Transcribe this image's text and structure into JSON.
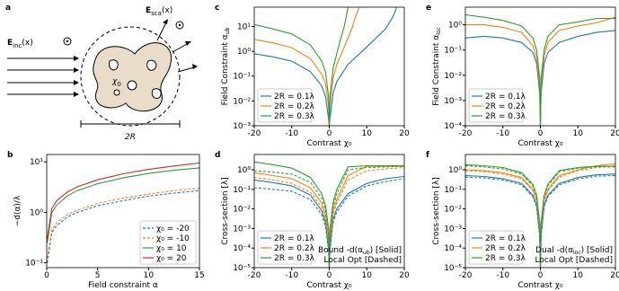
{
  "diagram": {
    "panel": "a",
    "incident": [
      "E",
      "inc",
      "(x)"
    ],
    "scattered": [
      "E",
      "sca",
      "(x)"
    ],
    "material": [
      "χ",
      "0"
    ],
    "diameter": "2R"
  },
  "chart_data": [
    {
      "type": "line",
      "panel": "b",
      "ylabel": "−d(α)/λ",
      "xlabel": "Field constraint α",
      "yscale": "log",
      "legend": "lower right",
      "x": [
        0.05,
        0.5,
        1,
        2,
        3,
        5,
        7.5,
        10,
        12.5,
        15
      ],
      "xlim": [
        0,
        15
      ],
      "xticks": [
        0,
        5,
        10,
        15
      ],
      "ylim": [
        0.08,
        14
      ],
      "yticks": [
        {
          "value": 0.1,
          "label": "10⁻¹"
        },
        {
          "value": 1,
          "label": "10⁰"
        },
        {
          "value": 10,
          "label": "10¹"
        }
      ],
      "series": [
        {
          "name": "χ₀ = -20",
          "color": "#1f77b4",
          "style": "dashed",
          "values": [
            0.1,
            0.4,
            0.55,
            0.8,
            1.0,
            1.35,
            1.7,
            2.1,
            2.4,
            2.7
          ]
        },
        {
          "name": "χ₀ = -10",
          "color": "#ff7f0e",
          "style": "dashed",
          "values": [
            0.12,
            0.45,
            0.62,
            0.9,
            1.1,
            1.5,
            1.9,
            2.3,
            2.7,
            3.0
          ]
        },
        {
          "name": "χ₀ = 10",
          "color": "#2ca02c",
          "style": "solid",
          "values": [
            0.25,
            1.0,
            1.4,
            2.1,
            2.7,
            3.7,
            4.8,
            5.9,
            6.8,
            7.6
          ]
        },
        {
          "name": "χ₀ = 20",
          "color": "#d62728",
          "style": "solid",
          "values": [
            0.3,
            1.2,
            1.7,
            2.5,
            3.2,
            4.4,
            5.8,
            7.1,
            8.3,
            9.5
          ]
        }
      ]
    },
    {
      "type": "line",
      "panel": "c",
      "ylabel": [
        "Field Constraint α",
        "ub"
      ],
      "xlabel": "Contrast χ₀",
      "yscale": "log",
      "legend": "lower left",
      "xlim": [
        -20,
        20
      ],
      "xticks": [
        -20,
        -10,
        0,
        10,
        20
      ],
      "ylim": [
        0.001,
        60
      ],
      "yticks": [
        {
          "value": 0.001,
          "label": "10⁻³"
        },
        {
          "value": 0.01,
          "label": "10⁻²"
        },
        {
          "value": 0.1,
          "label": "10⁻¹"
        },
        {
          "value": 1,
          "label": "10⁰"
        },
        {
          "value": 10,
          "label": "10¹"
        }
      ],
      "series": [
        {
          "name": "2R = 0.1λ",
          "color": "#1f77b4",
          "style": "solid",
          "x": [
            -20,
            -15,
            -10,
            -5,
            -2,
            -1,
            -0.2,
            0,
            0.2,
            1,
            2,
            5,
            10,
            15,
            17,
            18
          ],
          "values": [
            0.8,
            0.6,
            0.4,
            0.15,
            0.04,
            0.015,
            0.002,
            0.001,
            0.002,
            0.02,
            0.06,
            0.3,
            1.5,
            8,
            25,
            60
          ]
        },
        {
          "name": "2R = 0.2λ",
          "color": "#ff7f0e",
          "style": "solid",
          "x": [
            -20,
            -15,
            -10,
            -5,
            -2,
            -1,
            -0.2,
            0,
            0.2,
            1,
            2,
            4,
            6,
            7,
            8
          ],
          "values": [
            3,
            2.2,
            1.4,
            0.5,
            0.12,
            0.05,
            0.006,
            0.001,
            0.006,
            0.08,
            0.3,
            1.5,
            8,
            25,
            60
          ]
        },
        {
          "name": "2R = 0.3λ",
          "color": "#2ca02c",
          "style": "solid",
          "x": [
            -20,
            -15,
            -10,
            -5,
            -2,
            -1,
            -0.2,
            0,
            0.2,
            1,
            2,
            3,
            4,
            5
          ],
          "values": [
            12,
            8,
            5,
            1.8,
            0.4,
            0.15,
            0.015,
            0.001,
            0.015,
            0.2,
            0.8,
            3,
            10,
            60
          ]
        }
      ]
    },
    {
      "type": "line",
      "panel": "d",
      "ylabel": "Cross-section [λ]",
      "xlabel": "Contrast χ₀",
      "yscale": "log",
      "legend": "lower left",
      "annotations": [
        [
          "Bound -d(α",
          "ub",
          ") [Solid]"
        ],
        [
          "Local Opt [Dashed]"
        ]
      ],
      "x": [
        -20,
        -15,
        -10,
        -5,
        -2,
        -1,
        -0.2,
        0,
        0.2,
        1,
        2,
        5,
        10,
        15,
        20
      ],
      "xlim": [
        -20,
        20
      ],
      "xticks": [
        -20,
        -10,
        0,
        10,
        20
      ],
      "ylim": [
        1e-05,
        6
      ],
      "yticks": [
        {
          "value": 1e-05,
          "label": "10⁻⁵"
        },
        {
          "value": 0.0001,
          "label": "10⁻⁴"
        },
        {
          "value": 0.001,
          "label": "10⁻³"
        },
        {
          "value": 0.01,
          "label": "10⁻²"
        },
        {
          "value": 0.1,
          "label": "10⁻¹"
        },
        {
          "value": 1,
          "label": "10⁰"
        }
      ],
      "series": [
        {
          "name": "2R = 0.1λ",
          "color": "#1f77b4",
          "style": "solid",
          "values": [
            0.3,
            0.22,
            0.15,
            0.05,
            0.008,
            0.002,
            0.0001,
            1e-05,
            0.0001,
            0.003,
            0.01,
            0.06,
            0.2,
            0.35,
            0.45
          ]
        },
        {
          "name": "2R = 0.2λ",
          "color": "#ff7f0e",
          "style": "solid",
          "values": [
            0.7,
            0.5,
            0.35,
            0.12,
            0.02,
            0.005,
            0.0003,
            1e-05,
            0.0003,
            0.008,
            0.03,
            0.5,
            1.5,
            1.5,
            1.5
          ]
        },
        {
          "name": "2R = 0.3λ",
          "color": "#2ca02c",
          "style": "solid",
          "values": [
            2.5,
            1.8,
            1.2,
            0.4,
            0.06,
            0.015,
            0.001,
            1e-05,
            0.001,
            0.02,
            0.1,
            1.4,
            1.6,
            1.6,
            1.6
          ]
        },
        {
          "color": "#1f77b4",
          "style": "dashed",
          "values": [
            0.12,
            0.1,
            0.08,
            0.03,
            0.005,
            0.0013,
            8e-05,
            1e-05,
            8e-05,
            0.002,
            0.007,
            0.045,
            0.15,
            0.25,
            0.35
          ]
        },
        {
          "color": "#ff7f0e",
          "style": "dashed",
          "values": [
            0.4,
            0.3,
            0.2,
            0.07,
            0.012,
            0.003,
            0.0002,
            1e-05,
            0.0002,
            0.005,
            0.02,
            0.3,
            0.9,
            1.1,
            1.3
          ]
        },
        {
          "color": "#2ca02c",
          "style": "dashed",
          "values": [
            0.9,
            0.75,
            0.6,
            0.22,
            0.035,
            0.009,
            0.0006,
            1e-05,
            0.0006,
            0.012,
            0.06,
            1.0,
            1.3,
            1.4,
            1.5
          ]
        }
      ]
    },
    {
      "type": "line",
      "panel": "e",
      "ylabel": [
        "Field Constraint α",
        "loc"
      ],
      "xlabel": "Contrast χ₀",
      "yscale": "log",
      "legend": "lower left",
      "x": [
        -20,
        -15,
        -10,
        -5,
        -2,
        -1,
        -0.2,
        0,
        0.2,
        1,
        2,
        5,
        10,
        15,
        20
      ],
      "xlim": [
        -20,
        20
      ],
      "xticks": [
        -20,
        -10,
        0,
        10,
        20
      ],
      "ylim": [
        0.0001,
        5
      ],
      "yticks": [
        {
          "value": 0.0001,
          "label": "10⁻⁴"
        },
        {
          "value": 0.001,
          "label": "10⁻³"
        },
        {
          "value": 0.01,
          "label": "10⁻²"
        },
        {
          "value": 0.1,
          "label": "10⁻¹"
        },
        {
          "value": 1,
          "label": "10⁰"
        }
      ],
      "series": [
        {
          "name": "2R = 0.1λ",
          "color": "#1f77b4",
          "style": "solid",
          "values": [
            0.3,
            0.35,
            0.3,
            0.2,
            0.08,
            0.03,
            0.002,
            0.0001,
            0.002,
            0.03,
            0.08,
            0.2,
            0.35,
            0.5,
            0.6
          ]
        },
        {
          "name": "2R = 0.2λ",
          "color": "#ff7f0e",
          "style": "solid",
          "values": [
            1.0,
            1.0,
            0.8,
            0.5,
            0.15,
            0.05,
            0.004,
            0.0001,
            0.004,
            0.06,
            0.2,
            0.6,
            0.9,
            1.2,
            2.0
          ]
        },
        {
          "name": "2R = 0.3λ",
          "color": "#2ca02c",
          "style": "solid",
          "values": [
            2.5,
            2.0,
            1.5,
            0.9,
            0.3,
            0.1,
            0.008,
            0.0001,
            0.008,
            0.1,
            0.35,
            1.0,
            1.3,
            1.8,
            1.8
          ]
        }
      ]
    },
    {
      "type": "line",
      "panel": "f",
      "ylabel": "Cross-section [λ]",
      "xlabel": "Contrast χ₀",
      "yscale": "log",
      "legend": "lower left",
      "annotations": [
        [
          "Dual -d(α",
          "loc",
          ") [Solid]"
        ],
        [
          "Local Opt [Dashed]"
        ]
      ],
      "x": [
        -20,
        -15,
        -10,
        -5,
        -2,
        -1,
        -0.2,
        0,
        0.2,
        1,
        2,
        5,
        10,
        15,
        20
      ],
      "xlim": [
        -20,
        20
      ],
      "xticks": [
        -20,
        -10,
        0,
        10,
        20
      ],
      "ylim": [
        1e-05,
        6
      ],
      "yticks": [
        {
          "value": 1e-05,
          "label": "10⁻⁵"
        },
        {
          "value": 0.0001,
          "label": "10⁻⁴"
        },
        {
          "value": 0.001,
          "label": "10⁻³"
        },
        {
          "value": 0.01,
          "label": "10⁻²"
        },
        {
          "value": 0.1,
          "label": "10⁻¹"
        },
        {
          "value": 1,
          "label": "10⁰"
        }
      ],
      "series": [
        {
          "name": "2R = 0.1λ",
          "color": "#1f77b4",
          "style": "solid",
          "values": [
            0.5,
            0.45,
            0.35,
            0.2,
            0.05,
            0.015,
            0.0005,
            1e-05,
            0.0005,
            0.015,
            0.05,
            0.2,
            0.4,
            0.55,
            0.6
          ]
        },
        {
          "name": "2R = 0.2λ",
          "color": "#ff7f0e",
          "style": "solid",
          "values": [
            1.0,
            0.9,
            0.7,
            0.4,
            0.1,
            0.03,
            0.001,
            1e-05,
            0.001,
            0.03,
            0.1,
            0.5,
            1.0,
            1.6,
            2.0
          ]
        },
        {
          "name": "2R = 0.3λ",
          "color": "#2ca02c",
          "style": "solid",
          "values": [
            1.8,
            1.6,
            1.3,
            0.7,
            0.18,
            0.05,
            0.002,
            1e-05,
            0.002,
            0.05,
            0.18,
            0.9,
            1.3,
            1.5,
            1.5
          ]
        },
        {
          "color": "#1f77b4",
          "style": "dashed",
          "values": [
            0.42,
            0.38,
            0.3,
            0.17,
            0.042,
            0.013,
            0.0004,
            1e-05,
            0.0004,
            0.013,
            0.042,
            0.17,
            0.34,
            0.47,
            0.5
          ]
        },
        {
          "color": "#ff7f0e",
          "style": "dashed",
          "values": [
            0.9,
            0.8,
            0.6,
            0.35,
            0.085,
            0.025,
            0.0009,
            1e-05,
            0.0009,
            0.025,
            0.085,
            0.42,
            0.9,
            1.3,
            1.6
          ]
        },
        {
          "color": "#2ca02c",
          "style": "dashed",
          "values": [
            1.6,
            1.4,
            1.1,
            0.6,
            0.15,
            0.045,
            0.0018,
            1e-05,
            0.0018,
            0.045,
            0.15,
            0.8,
            1.2,
            1.4,
            1.4
          ]
        }
      ]
    }
  ]
}
